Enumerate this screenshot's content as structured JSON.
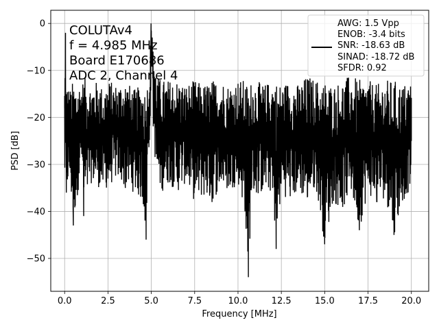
{
  "chart_data": {
    "type": "line",
    "xlabel": "Frequency [MHz]",
    "ylabel": "PSD [dB]",
    "xlim": [
      -0.8,
      21.0
    ],
    "ylim": [
      -57.0,
      2.8
    ],
    "xticks": [
      0.0,
      2.5,
      5.0,
      7.5,
      10.0,
      12.5,
      15.0,
      17.5,
      20.0
    ],
    "xtick_labels": [
      "0.0",
      "2.5",
      "5.0",
      "7.5",
      "10.0",
      "12.5",
      "15.0",
      "17.5",
      "20.0"
    ],
    "yticks": [
      0,
      -10,
      -20,
      -30,
      -40,
      -50
    ],
    "ytick_labels": [
      "0",
      "−10",
      "−20",
      "−30",
      "−40",
      "−50"
    ],
    "grid": true,
    "annotation": [
      "COLUTAv4",
      "f = 4.985 MHz",
      "Board E170686",
      "ADC 2, Channel 4"
    ],
    "legend": {
      "placement": "top-right",
      "lines": [
        "AWG: 1.5 Vpp",
        "ENOB: -3.4 bits",
        "SNR: -18.63 dB",
        "SINAD: -18.72 dB",
        "SFDR: 0.92"
      ]
    },
    "series": [
      {
        "color": "#000000",
        "description": "noisy spectrum, 0 to 20 MHz; noise floor roughly -35 to -12 dB; main peak near 4.985 MHz",
        "x": [
          0.0,
          0.05,
          0.1,
          0.3,
          0.5,
          1.0,
          1.1,
          1.5,
          2.0,
          2.2,
          2.5,
          3.0,
          3.5,
          4.0,
          4.5,
          4.7,
          4.8,
          4.9,
          4.985,
          5.05,
          5.1,
          5.3,
          5.6,
          6.0,
          6.5,
          7.0,
          7.5,
          8.0,
          8.5,
          9.0,
          9.5,
          10.0,
          10.4,
          10.6,
          10.8,
          11.0,
          11.5,
          12.0,
          12.2,
          12.5,
          13.0,
          13.5,
          14.0,
          14.5,
          15.0,
          15.5,
          16.0,
          16.5,
          17.0,
          17.5,
          18.0,
          18.5,
          19.0,
          19.5,
          20.0
        ],
        "y": [
          -18,
          -2,
          -36,
          -25,
          -43,
          -20,
          -41,
          -27,
          -34,
          -23,
          -33,
          -28,
          -35,
          -24,
          -31,
          -46,
          -24,
          -15,
          0,
          -3,
          -6,
          -18,
          -30,
          -23,
          -33,
          -28,
          -35,
          -27,
          -38,
          -25,
          -32,
          -27,
          -40,
          -54,
          -30,
          -33,
          -27,
          -35,
          -48,
          -26,
          -34,
          -28,
          -37,
          -30,
          -47,
          -29,
          -38,
          -31,
          -44,
          -33,
          -38,
          -28,
          -45,
          -32,
          -25
        ],
        "band_min": [
          -34,
          -36,
          -36,
          -34,
          -43,
          -30,
          -41,
          -34,
          -35,
          -36,
          -35,
          -33,
          -35,
          -36,
          -38,
          -46,
          -30,
          -28,
          -10,
          -10,
          -22,
          -34,
          -36,
          -34,
          -36,
          -34,
          -38,
          -37,
          -38,
          -35,
          -36,
          -34,
          -40,
          -54,
          -36,
          -37,
          -36,
          -36,
          -48,
          -36,
          -38,
          -36,
          -38,
          -35,
          -47,
          -38,
          -40,
          -36,
          -44,
          -36,
          -39,
          -37,
          -45,
          -38,
          -35
        ],
        "band_max": [
          -12,
          -2,
          -12,
          -14,
          -12,
          -13,
          -11,
          -13,
          -12,
          -14,
          -12,
          -13,
          -12,
          -14,
          -13,
          -14,
          -12,
          -10,
          0,
          -3,
          -4,
          -11,
          -12,
          -12,
          -12,
          -13,
          -12,
          -13,
          -12,
          -12,
          -13,
          -12,
          -12,
          -13,
          -12,
          -12,
          -13,
          -12,
          -12,
          -13,
          -12,
          -13,
          -11,
          -12,
          -12,
          -13,
          -12,
          -11,
          -12,
          -12,
          -13,
          -12,
          -12,
          -13,
          -12
        ]
      }
    ]
  }
}
